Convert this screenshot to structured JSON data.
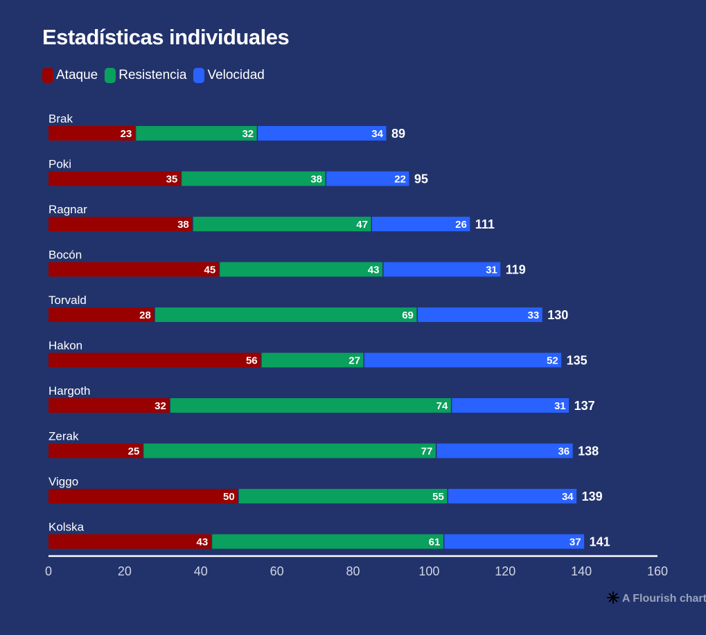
{
  "title": "Estadísticas individuales",
  "legend": [
    {
      "name": "Ataque",
      "color": "#990000"
    },
    {
      "name": "Resistencia",
      "color": "#0aa05e"
    },
    {
      "name": "Velocidad",
      "color": "#2962ff"
    }
  ],
  "footer": {
    "text": "A Flourish chart",
    "icon": "flourish-logo-icon"
  },
  "chart_data": {
    "type": "bar",
    "orientation": "horizontal",
    "stacked": true,
    "title": "Estadísticas individuales",
    "categories": [
      "Brak",
      "Poki",
      "Ragnar",
      "Bocón",
      "Torvald",
      "Hakon",
      "Hargoth",
      "Zerak",
      "Viggo",
      "Kolska"
    ],
    "series": [
      {
        "name": "Ataque",
        "color": "#990000",
        "values": [
          23,
          35,
          38,
          45,
          28,
          56,
          32,
          25,
          50,
          43
        ]
      },
      {
        "name": "Resistencia",
        "color": "#0aa05e",
        "values": [
          32,
          38,
          47,
          43,
          69,
          27,
          74,
          77,
          55,
          61
        ]
      },
      {
        "name": "Velocidad",
        "color": "#2962ff",
        "values": [
          34,
          22,
          26,
          31,
          33,
          52,
          31,
          36,
          34,
          37
        ]
      }
    ],
    "totals": [
      89,
      95,
      111,
      119,
      130,
      135,
      137,
      138,
      139,
      141
    ],
    "xlim": [
      0,
      160
    ],
    "xticks": [
      0,
      20,
      40,
      60,
      80,
      100,
      120,
      140,
      160
    ],
    "grid": false,
    "legend_position": "top-left"
  }
}
